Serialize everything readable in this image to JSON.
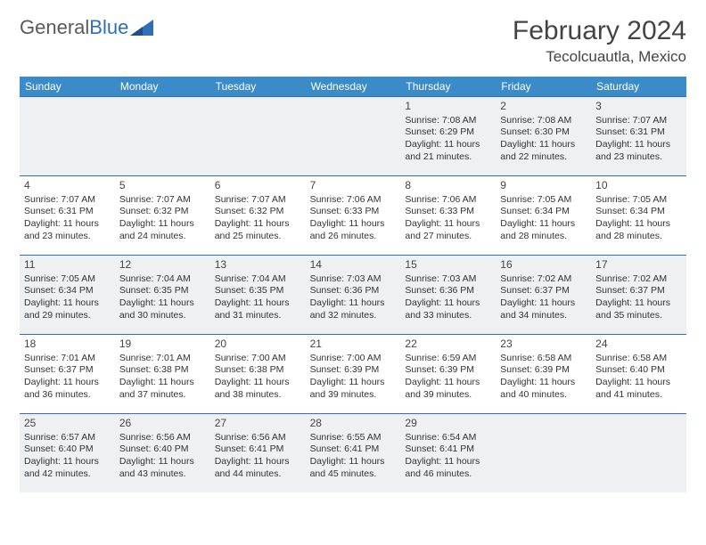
{
  "logo": {
    "word1": "General",
    "word2": "Blue"
  },
  "header": {
    "month_title": "February 2024",
    "location": "Tecolcuautla, Mexico"
  },
  "colors": {
    "header_bg": "#3b8bc9",
    "border": "#2e6fb8",
    "shaded_bg": "#eef0f2",
    "text": "#333333",
    "logo_gray": "#5a5a5a",
    "logo_blue": "#2e6fb8"
  },
  "weekdays": [
    "Sunday",
    "Monday",
    "Tuesday",
    "Wednesday",
    "Thursday",
    "Friday",
    "Saturday"
  ],
  "weeks": [
    [
      {
        "num": "",
        "lines": []
      },
      {
        "num": "",
        "lines": []
      },
      {
        "num": "",
        "lines": []
      },
      {
        "num": "",
        "lines": []
      },
      {
        "num": "1",
        "lines": [
          "Sunrise: 7:08 AM",
          "Sunset: 6:29 PM",
          "Daylight: 11 hours and 21 minutes."
        ]
      },
      {
        "num": "2",
        "lines": [
          "Sunrise: 7:08 AM",
          "Sunset: 6:30 PM",
          "Daylight: 11 hours and 22 minutes."
        ]
      },
      {
        "num": "3",
        "lines": [
          "Sunrise: 7:07 AM",
          "Sunset: 6:31 PM",
          "Daylight: 11 hours and 23 minutes."
        ]
      }
    ],
    [
      {
        "num": "4",
        "lines": [
          "Sunrise: 7:07 AM",
          "Sunset: 6:31 PM",
          "Daylight: 11 hours and 23 minutes."
        ]
      },
      {
        "num": "5",
        "lines": [
          "Sunrise: 7:07 AM",
          "Sunset: 6:32 PM",
          "Daylight: 11 hours and 24 minutes."
        ]
      },
      {
        "num": "6",
        "lines": [
          "Sunrise: 7:07 AM",
          "Sunset: 6:32 PM",
          "Daylight: 11 hours and 25 minutes."
        ]
      },
      {
        "num": "7",
        "lines": [
          "Sunrise: 7:06 AM",
          "Sunset: 6:33 PM",
          "Daylight: 11 hours and 26 minutes."
        ]
      },
      {
        "num": "8",
        "lines": [
          "Sunrise: 7:06 AM",
          "Sunset: 6:33 PM",
          "Daylight: 11 hours and 27 minutes."
        ]
      },
      {
        "num": "9",
        "lines": [
          "Sunrise: 7:05 AM",
          "Sunset: 6:34 PM",
          "Daylight: 11 hours and 28 minutes."
        ]
      },
      {
        "num": "10",
        "lines": [
          "Sunrise: 7:05 AM",
          "Sunset: 6:34 PM",
          "Daylight: 11 hours and 28 minutes."
        ]
      }
    ],
    [
      {
        "num": "11",
        "lines": [
          "Sunrise: 7:05 AM",
          "Sunset: 6:34 PM",
          "Daylight: 11 hours and 29 minutes."
        ]
      },
      {
        "num": "12",
        "lines": [
          "Sunrise: 7:04 AM",
          "Sunset: 6:35 PM",
          "Daylight: 11 hours and 30 minutes."
        ]
      },
      {
        "num": "13",
        "lines": [
          "Sunrise: 7:04 AM",
          "Sunset: 6:35 PM",
          "Daylight: 11 hours and 31 minutes."
        ]
      },
      {
        "num": "14",
        "lines": [
          "Sunrise: 7:03 AM",
          "Sunset: 6:36 PM",
          "Daylight: 11 hours and 32 minutes."
        ]
      },
      {
        "num": "15",
        "lines": [
          "Sunrise: 7:03 AM",
          "Sunset: 6:36 PM",
          "Daylight: 11 hours and 33 minutes."
        ]
      },
      {
        "num": "16",
        "lines": [
          "Sunrise: 7:02 AM",
          "Sunset: 6:37 PM",
          "Daylight: 11 hours and 34 minutes."
        ]
      },
      {
        "num": "17",
        "lines": [
          "Sunrise: 7:02 AM",
          "Sunset: 6:37 PM",
          "Daylight: 11 hours and 35 minutes."
        ]
      }
    ],
    [
      {
        "num": "18",
        "lines": [
          "Sunrise: 7:01 AM",
          "Sunset: 6:37 PM",
          "Daylight: 11 hours and 36 minutes."
        ]
      },
      {
        "num": "19",
        "lines": [
          "Sunrise: 7:01 AM",
          "Sunset: 6:38 PM",
          "Daylight: 11 hours and 37 minutes."
        ]
      },
      {
        "num": "20",
        "lines": [
          "Sunrise: 7:00 AM",
          "Sunset: 6:38 PM",
          "Daylight: 11 hours and 38 minutes."
        ]
      },
      {
        "num": "21",
        "lines": [
          "Sunrise: 7:00 AM",
          "Sunset: 6:39 PM",
          "Daylight: 11 hours and 39 minutes."
        ]
      },
      {
        "num": "22",
        "lines": [
          "Sunrise: 6:59 AM",
          "Sunset: 6:39 PM",
          "Daylight: 11 hours and 39 minutes."
        ]
      },
      {
        "num": "23",
        "lines": [
          "Sunrise: 6:58 AM",
          "Sunset: 6:39 PM",
          "Daylight: 11 hours and 40 minutes."
        ]
      },
      {
        "num": "24",
        "lines": [
          "Sunrise: 6:58 AM",
          "Sunset: 6:40 PM",
          "Daylight: 11 hours and 41 minutes."
        ]
      }
    ],
    [
      {
        "num": "25",
        "lines": [
          "Sunrise: 6:57 AM",
          "Sunset: 6:40 PM",
          "Daylight: 11 hours and 42 minutes."
        ]
      },
      {
        "num": "26",
        "lines": [
          "Sunrise: 6:56 AM",
          "Sunset: 6:40 PM",
          "Daylight: 11 hours and 43 minutes."
        ]
      },
      {
        "num": "27",
        "lines": [
          "Sunrise: 6:56 AM",
          "Sunset: 6:41 PM",
          "Daylight: 11 hours and 44 minutes."
        ]
      },
      {
        "num": "28",
        "lines": [
          "Sunrise: 6:55 AM",
          "Sunset: 6:41 PM",
          "Daylight: 11 hours and 45 minutes."
        ]
      },
      {
        "num": "29",
        "lines": [
          "Sunrise: 6:54 AM",
          "Sunset: 6:41 PM",
          "Daylight: 11 hours and 46 minutes."
        ]
      },
      {
        "num": "",
        "lines": []
      },
      {
        "num": "",
        "lines": []
      }
    ]
  ]
}
